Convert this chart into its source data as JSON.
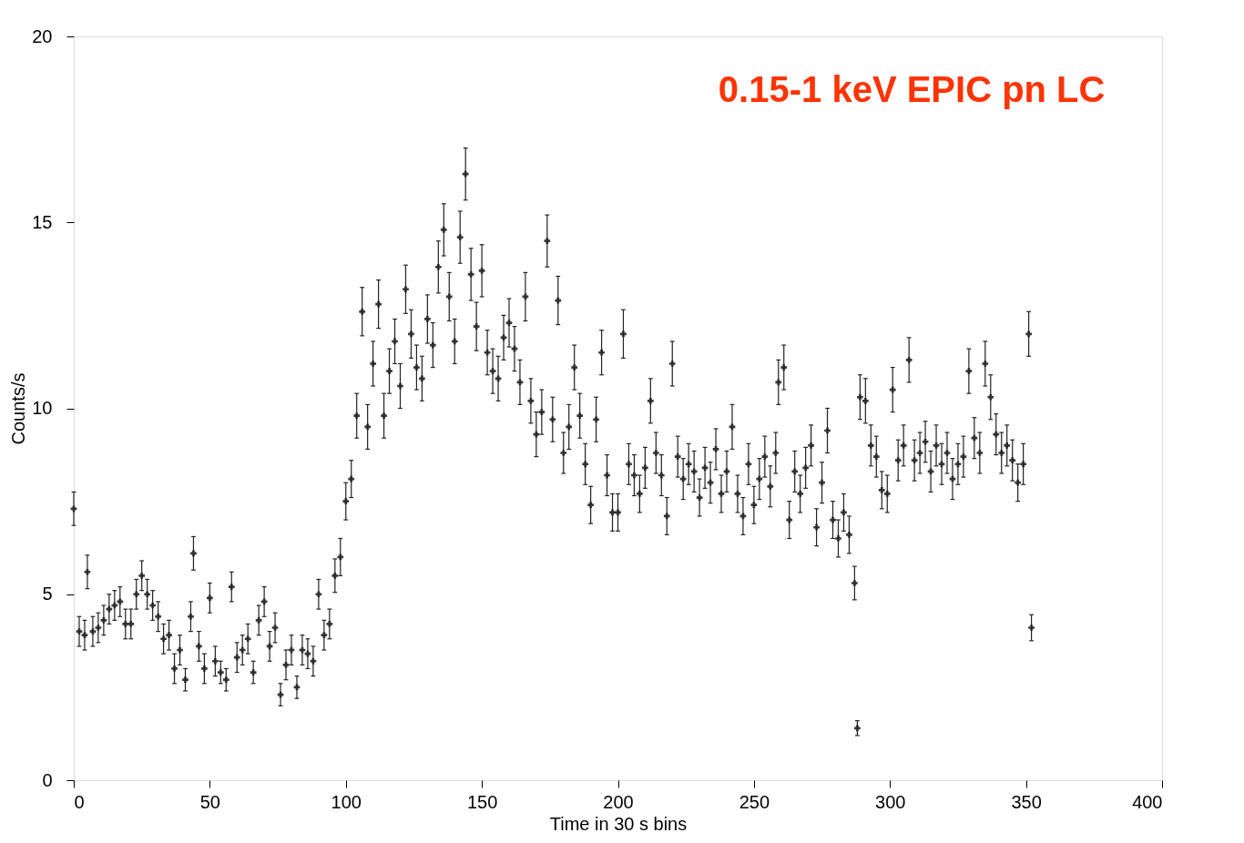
{
  "chart_data": {
    "type": "scatter",
    "title": "0.15-1 keV EPIC pn LC",
    "xlabel": "Time in 30 s bins",
    "ylabel": "Counts/s",
    "xlim": [
      0,
      400
    ],
    "xticks": [
      0,
      50,
      100,
      150,
      200,
      250,
      300,
      350,
      400
    ],
    "ylim": [
      0,
      20
    ],
    "yticks": [
      0,
      5,
      10,
      15,
      20
    ],
    "grid": false,
    "marker": "cross",
    "color": "#222222",
    "x": [
      0,
      2,
      4,
      5,
      7,
      9,
      11,
      13,
      15,
      17,
      19,
      21,
      23,
      25,
      27,
      29,
      31,
      33,
      35,
      37,
      39,
      41,
      43,
      44,
      46,
      48,
      50,
      52,
      54,
      56,
      58,
      60,
      62,
      64,
      66,
      68,
      70,
      72,
      74,
      76,
      78,
      80,
      82,
      84,
      86,
      88,
      90,
      92,
      94,
      96,
      98,
      100,
      102,
      104,
      106,
      108,
      110,
      112,
      114,
      116,
      118,
      120,
      122,
      124,
      126,
      128,
      130,
      132,
      134,
      136,
      138,
      140,
      142,
      144,
      146,
      148,
      150,
      152,
      154,
      156,
      158,
      160,
      162,
      164,
      166,
      168,
      170,
      172,
      174,
      176,
      178,
      180,
      182,
      184,
      186,
      188,
      190,
      192,
      194,
      196,
      198,
      200,
      202,
      204,
      206,
      208,
      210,
      212,
      214,
      216,
      218,
      220,
      222,
      224,
      226,
      228,
      230,
      232,
      234,
      236,
      238,
      240,
      242,
      244,
      246,
      248,
      250,
      252,
      254,
      256,
      258,
      259,
      261,
      263,
      265,
      267,
      269,
      271,
      273,
      275,
      277,
      279,
      281,
      283,
      285,
      287,
      288,
      289,
      291,
      293,
      295,
      297,
      299,
      301,
      303,
      305,
      307,
      309,
      311,
      313,
      315,
      317,
      319,
      321,
      323,
      325,
      327,
      329,
      331,
      333,
      335,
      337,
      339,
      341,
      343,
      345,
      347,
      349,
      351,
      352
    ],
    "values": [
      7.3,
      4.0,
      3.9,
      5.6,
      4.0,
      4.1,
      4.3,
      4.6,
      4.7,
      4.8,
      4.2,
      4.2,
      5.0,
      5.5,
      5.0,
      4.7,
      4.4,
      3.8,
      3.9,
      3.0,
      3.5,
      2.7,
      4.4,
      6.1,
      3.6,
      3.0,
      4.9,
      3.2,
      2.9,
      2.7,
      5.2,
      3.3,
      3.5,
      3.8,
      2.9,
      4.3,
      4.8,
      3.6,
      4.1,
      2.3,
      3.1,
      3.5,
      2.5,
      3.5,
      3.4,
      3.2,
      5.0,
      3.9,
      4.2,
      5.5,
      6.0,
      7.5,
      8.1,
      9.8,
      12.6,
      9.5,
      11.2,
      12.8,
      9.8,
      11.0,
      11.8,
      10.6,
      13.2,
      12.0,
      11.1,
      10.8,
      12.4,
      11.7,
      13.8,
      14.8,
      13.0,
      11.8,
      14.6,
      16.3,
      13.6,
      12.2,
      13.7,
      11.5,
      11.0,
      10.8,
      11.9,
      12.3,
      11.6,
      10.7,
      13.0,
      10.2,
      9.3,
      9.9,
      14.5,
      9.7,
      12.9,
      8.8,
      9.5,
      11.1,
      9.8,
      8.5,
      7.4,
      9.7,
      11.5,
      8.2,
      7.2,
      7.2,
      12.0,
      8.5,
      8.2,
      7.7,
      8.4,
      10.2,
      8.8,
      8.2,
      7.1,
      11.2,
      8.7,
      8.1,
      8.5,
      8.3,
      7.6,
      8.4,
      8.0,
      8.9,
      7.7,
      8.3,
      9.5,
      7.7,
      7.1,
      8.5,
      7.4,
      8.1,
      8.7,
      7.9,
      8.8,
      10.7,
      11.1,
      7.0,
      8.3,
      7.7,
      8.4,
      9.0,
      6.8,
      8.0,
      9.4,
      7.0,
      6.5,
      7.2,
      6.6,
      5.3,
      1.4,
      10.3,
      10.2,
      9.0,
      8.7,
      7.8,
      7.7,
      10.5,
      8.6,
      9.0,
      11.3,
      8.6,
      8.8,
      9.1,
      8.3,
      9.0,
      8.5,
      8.8,
      8.1,
      8.5,
      8.7,
      11.0,
      9.2,
      8.8,
      11.2,
      10.3,
      9.3,
      8.8,
      9.0,
      8.6,
      8.0,
      8.5,
      12.0,
      4.1
    ],
    "errors": [
      0.45,
      0.4,
      0.4,
      0.45,
      0.4,
      0.4,
      0.4,
      0.4,
      0.4,
      0.4,
      0.4,
      0.4,
      0.4,
      0.4,
      0.4,
      0.4,
      0.4,
      0.4,
      0.4,
      0.4,
      0.4,
      0.3,
      0.4,
      0.45,
      0.4,
      0.4,
      0.4,
      0.4,
      0.3,
      0.3,
      0.4,
      0.4,
      0.4,
      0.4,
      0.3,
      0.4,
      0.4,
      0.4,
      0.4,
      0.3,
      0.4,
      0.4,
      0.3,
      0.4,
      0.4,
      0.4,
      0.4,
      0.4,
      0.4,
      0.45,
      0.5,
      0.5,
      0.5,
      0.6,
      0.65,
      0.6,
      0.6,
      0.65,
      0.6,
      0.6,
      0.6,
      0.6,
      0.65,
      0.65,
      0.6,
      0.6,
      0.65,
      0.6,
      0.7,
      0.7,
      0.65,
      0.6,
      0.7,
      0.7,
      0.7,
      0.65,
      0.7,
      0.6,
      0.6,
      0.6,
      0.6,
      0.65,
      0.6,
      0.6,
      0.65,
      0.6,
      0.6,
      0.6,
      0.7,
      0.6,
      0.65,
      0.55,
      0.6,
      0.6,
      0.6,
      0.55,
      0.5,
      0.6,
      0.6,
      0.55,
      0.5,
      0.5,
      0.65,
      0.55,
      0.55,
      0.5,
      0.55,
      0.6,
      0.55,
      0.55,
      0.5,
      0.6,
      0.55,
      0.55,
      0.55,
      0.55,
      0.5,
      0.55,
      0.55,
      0.55,
      0.5,
      0.55,
      0.6,
      0.5,
      0.5,
      0.55,
      0.5,
      0.55,
      0.55,
      0.55,
      0.55,
      0.6,
      0.6,
      0.5,
      0.55,
      0.5,
      0.55,
      0.55,
      0.5,
      0.55,
      0.6,
      0.5,
      0.5,
      0.5,
      0.5,
      0.45,
      0.2,
      0.6,
      0.6,
      0.55,
      0.55,
      0.5,
      0.5,
      0.6,
      0.55,
      0.55,
      0.6,
      0.55,
      0.55,
      0.55,
      0.55,
      0.55,
      0.55,
      0.55,
      0.55,
      0.55,
      0.55,
      0.6,
      0.55,
      0.55,
      0.6,
      0.6,
      0.55,
      0.55,
      0.55,
      0.55,
      0.5,
      0.55,
      0.6,
      0.35
    ]
  }
}
